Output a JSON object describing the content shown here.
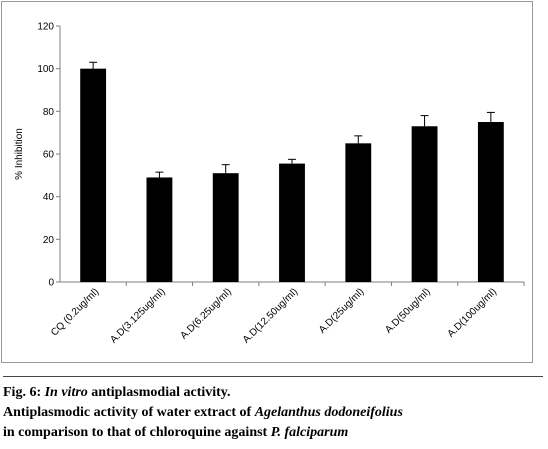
{
  "chart_data": {
    "type": "bar",
    "categories": [
      "CQ (0.2ug/ml)",
      "A.D(3.125ug/ml)",
      "A.D(6.25ug/ml)",
      "A.D(12.50ug/ml)",
      "A.D(25ug/ml)",
      "A.D(50ug/ml)",
      "A.D(100ug/ml)"
    ],
    "values": [
      100,
      49,
      51,
      55.5,
      65,
      73,
      75
    ],
    "errors": [
      3,
      2.5,
      4,
      2,
      3.5,
      5,
      4.5
    ],
    "ylabel": "% Inhibition",
    "xlabel": "",
    "ylim": [
      0,
      120
    ],
    "yticks": [
      0,
      20,
      40,
      60,
      80,
      100,
      120
    ],
    "bar_color": "#000000",
    "grid": false
  },
  "caption": {
    "fig_label": "Fig. 6: ",
    "title_italic": "In vitro",
    "title_rest": " antiplasmodial activity.",
    "desc_1": "Antiplasmodic activity of water extract of ",
    "desc_1_italic": "Agelanthus dodoneifolius",
    "desc_2": "in comparison to that of chloroquine against ",
    "desc_2_italic": "P. falciparum"
  }
}
